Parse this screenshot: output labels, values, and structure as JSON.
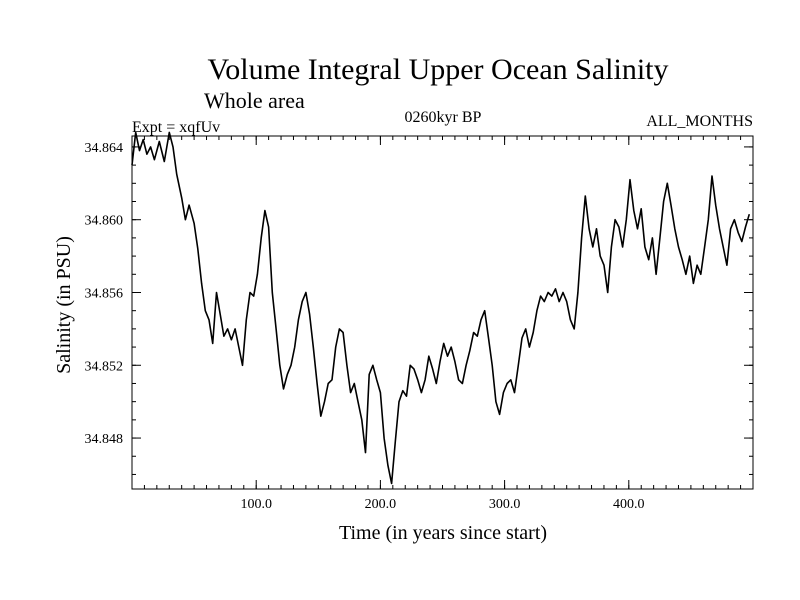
{
  "chart_data": {
    "type": "line",
    "title": "Volume Integral Upper Ocean Salinity",
    "subtitle": "Whole area",
    "experiment_label": "Expt = xqfUv",
    "period_label": "0260kyr BP",
    "months_label": "ALL_MONTHS",
    "xlabel": "Time (in years since start)",
    "ylabel": "Salinity (in PSU)",
    "xlim": [
      0,
      500
    ],
    "ylim": [
      34.8452,
      34.8646
    ],
    "x_ticks": [
      100,
      200,
      300,
      400
    ],
    "x_tick_labels": [
      "100.0",
      "200.0",
      "300.0",
      "400.0"
    ],
    "y_ticks": [
      34.848,
      34.852,
      34.856,
      34.86,
      34.864
    ],
    "y_tick_labels": [
      "34.848",
      "34.852",
      "34.856",
      "34.860",
      "34.864"
    ],
    "x_minor_step": 10,
    "y_minor_step": 0.001,
    "series": [
      {
        "name": "Salinity",
        "color": "#000000",
        "points": [
          [
            0,
            34.863
          ],
          [
            3,
            34.8648
          ],
          [
            6,
            34.8638
          ],
          [
            9,
            34.8644
          ],
          [
            12,
            34.8636
          ],
          [
            15,
            34.864
          ],
          [
            18,
            34.8633
          ],
          [
            22,
            34.8643
          ],
          [
            26,
            34.8632
          ],
          [
            30,
            34.8648
          ],
          [
            33,
            34.864
          ],
          [
            36,
            34.8625
          ],
          [
            40,
            34.8612
          ],
          [
            43,
            34.86
          ],
          [
            46,
            34.8608
          ],
          [
            50,
            34.8598
          ],
          [
            53,
            34.8584
          ],
          [
            56,
            34.8565
          ],
          [
            59,
            34.855
          ],
          [
            62,
            34.8545
          ],
          [
            65,
            34.8532
          ],
          [
            68,
            34.856
          ],
          [
            71,
            34.8548
          ],
          [
            74,
            34.8536
          ],
          [
            77,
            34.854
          ],
          [
            80,
            34.8534
          ],
          [
            83,
            34.854
          ],
          [
            86,
            34.853
          ],
          [
            89,
            34.852
          ],
          [
            92,
            34.8545
          ],
          [
            95,
            34.856
          ],
          [
            98,
            34.8558
          ],
          [
            101,
            34.857
          ],
          [
            104,
            34.859
          ],
          [
            107,
            34.8605
          ],
          [
            110,
            34.8596
          ],
          [
            113,
            34.856
          ],
          [
            116,
            34.854
          ],
          [
            119,
            34.852
          ],
          [
            122,
            34.8507
          ],
          [
            125,
            34.8515
          ],
          [
            128,
            34.852
          ],
          [
            131,
            34.853
          ],
          [
            134,
            34.8545
          ],
          [
            137,
            34.8555
          ],
          [
            140,
            34.856
          ],
          [
            143,
            34.8548
          ],
          [
            146,
            34.853
          ],
          [
            149,
            34.851
          ],
          [
            152,
            34.8492
          ],
          [
            155,
            34.85
          ],
          [
            158,
            34.851
          ],
          [
            161,
            34.8512
          ],
          [
            164,
            34.853
          ],
          [
            167,
            34.854
          ],
          [
            170,
            34.8538
          ],
          [
            173,
            34.852
          ],
          [
            176,
            34.8505
          ],
          [
            179,
            34.851
          ],
          [
            182,
            34.85
          ],
          [
            185,
            34.849
          ],
          [
            188,
            34.8472
          ],
          [
            191,
            34.8515
          ],
          [
            194,
            34.852
          ],
          [
            197,
            34.8512
          ],
          [
            200,
            34.8505
          ],
          [
            203,
            34.848
          ],
          [
            206,
            34.8465
          ],
          [
            209,
            34.8455
          ],
          [
            212,
            34.8478
          ],
          [
            215,
            34.85
          ],
          [
            218,
            34.8506
          ],
          [
            221,
            34.8503
          ],
          [
            224,
            34.852
          ],
          [
            227,
            34.8518
          ],
          [
            230,
            34.8512
          ],
          [
            233,
            34.8505
          ],
          [
            236,
            34.8512
          ],
          [
            239,
            34.8525
          ],
          [
            242,
            34.8518
          ],
          [
            245,
            34.851
          ],
          [
            248,
            34.8522
          ],
          [
            251,
            34.8532
          ],
          [
            254,
            34.8525
          ],
          [
            257,
            34.853
          ],
          [
            260,
            34.8522
          ],
          [
            263,
            34.8512
          ],
          [
            266,
            34.851
          ],
          [
            269,
            34.852
          ],
          [
            272,
            34.8528
          ],
          [
            275,
            34.8538
          ],
          [
            278,
            34.8536
          ],
          [
            281,
            34.8545
          ],
          [
            284,
            34.855
          ],
          [
            287,
            34.8535
          ],
          [
            290,
            34.852
          ],
          [
            293,
            34.85
          ],
          [
            296,
            34.8493
          ],
          [
            299,
            34.8505
          ],
          [
            302,
            34.851
          ],
          [
            305,
            34.8512
          ],
          [
            308,
            34.8505
          ],
          [
            311,
            34.852
          ],
          [
            314,
            34.8535
          ],
          [
            317,
            34.854
          ],
          [
            320,
            34.853
          ],
          [
            323,
            34.8538
          ],
          [
            326,
            34.855
          ],
          [
            329,
            34.8558
          ],
          [
            332,
            34.8555
          ],
          [
            335,
            34.856
          ],
          [
            338,
            34.8558
          ],
          [
            341,
            34.8562
          ],
          [
            344,
            34.8555
          ],
          [
            347,
            34.856
          ],
          [
            350,
            34.8555
          ],
          [
            353,
            34.8545
          ],
          [
            356,
            34.854
          ],
          [
            359,
            34.856
          ],
          [
            362,
            34.859
          ],
          [
            365,
            34.8613
          ],
          [
            368,
            34.8595
          ],
          [
            371,
            34.8585
          ],
          [
            374,
            34.8595
          ],
          [
            377,
            34.858
          ],
          [
            380,
            34.8575
          ],
          [
            383,
            34.856
          ],
          [
            386,
            34.8585
          ],
          [
            389,
            34.86
          ],
          [
            392,
            34.8596
          ],
          [
            395,
            34.8585
          ],
          [
            398,
            34.86
          ],
          [
            401,
            34.8622
          ],
          [
            404,
            34.8605
          ],
          [
            407,
            34.8595
          ],
          [
            410,
            34.8606
          ],
          [
            413,
            34.8585
          ],
          [
            416,
            34.8578
          ],
          [
            419,
            34.859
          ],
          [
            422,
            34.857
          ],
          [
            425,
            34.859
          ],
          [
            428,
            34.861
          ],
          [
            431,
            34.862
          ],
          [
            434,
            34.8608
          ],
          [
            437,
            34.8595
          ],
          [
            440,
            34.8585
          ],
          [
            443,
            34.8578
          ],
          [
            446,
            34.857
          ],
          [
            449,
            34.858
          ],
          [
            452,
            34.8565
          ],
          [
            455,
            34.8575
          ],
          [
            458,
            34.857
          ],
          [
            461,
            34.8585
          ],
          [
            464,
            34.86
          ],
          [
            467,
            34.8624
          ],
          [
            470,
            34.8608
          ],
          [
            473,
            34.8595
          ],
          [
            476,
            34.8585
          ],
          [
            479,
            34.8575
          ],
          [
            482,
            34.8595
          ],
          [
            485,
            34.86
          ],
          [
            488,
            34.8593
          ],
          [
            491,
            34.8588
          ],
          [
            494,
            34.8596
          ],
          [
            497,
            34.8603
          ]
        ]
      }
    ]
  }
}
